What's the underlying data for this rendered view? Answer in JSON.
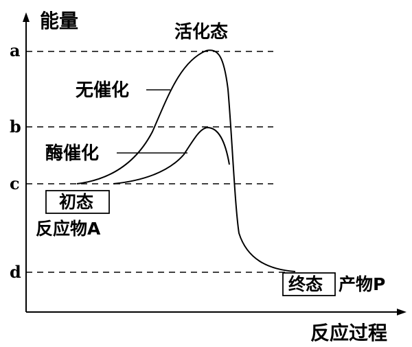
{
  "axes": {
    "y_label": "能量",
    "x_label": "反应过程"
  },
  "levels": [
    {
      "key": "a",
      "label": "a"
    },
    {
      "key": "b",
      "label": "b"
    },
    {
      "key": "c",
      "label": "c"
    },
    {
      "key": "d",
      "label": "d"
    }
  ],
  "curves": {
    "uncatalyzed_label": "无催化",
    "enzyme_label": "酶催化",
    "peak_label": "活化态"
  },
  "initial_state": {
    "box_label": "初态",
    "reactant_label": "反应物A"
  },
  "final_state": {
    "box_label": "终态",
    "product_label": "产物P"
  }
}
